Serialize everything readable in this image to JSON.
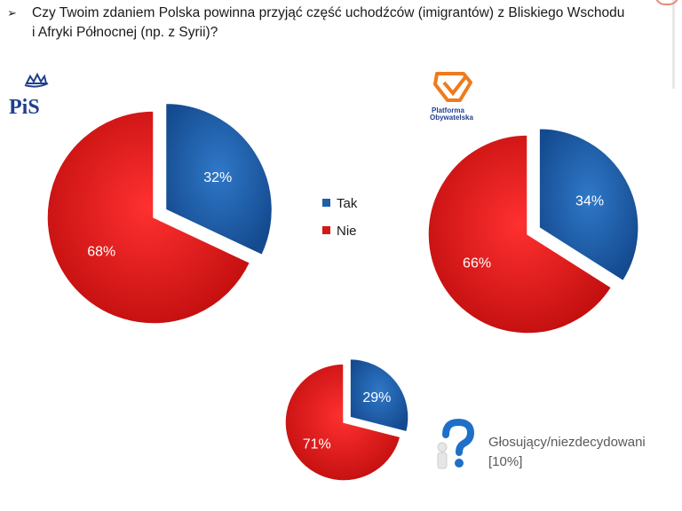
{
  "question": {
    "bullet": "➢",
    "text": "Czy Twoim zdaniem Polska powinna przyjąć część uchodźców (imigrantów) z Bliskiego Wschodu i Afryki Północnej (np. z Syrii)?"
  },
  "logos": {
    "pis": "PiS",
    "po_line1": "Platforma",
    "po_line2": "Obywatelska"
  },
  "undecided_label": {
    "line1": "Głosujący/niezdecydowani",
    "line2": "[10%]"
  },
  "colors": {
    "tak": "#1f5fa8",
    "nie": "#d11a1a"
  },
  "chart_data": [
    {
      "type": "pie",
      "group": "PiS",
      "series": [
        {
          "name": "Tak",
          "value": 32,
          "label": "32%"
        },
        {
          "name": "Nie",
          "value": 68,
          "label": "68%"
        }
      ]
    },
    {
      "type": "pie",
      "group": "Platforma Obywatelska",
      "series": [
        {
          "name": "Tak",
          "value": 34,
          "label": "34%"
        },
        {
          "name": "Nie",
          "value": 66,
          "label": "66%"
        }
      ]
    },
    {
      "type": "pie",
      "group": "Głosujący/niezdecydowani [10%]",
      "series": [
        {
          "name": "Tak",
          "value": 29,
          "label": "29%"
        },
        {
          "name": "Nie",
          "value": 71,
          "label": "71%"
        }
      ]
    }
  ],
  "legend": [
    {
      "name": "Tak",
      "color": "#1f5fa8"
    },
    {
      "name": "Nie",
      "color": "#d11a1a"
    }
  ]
}
